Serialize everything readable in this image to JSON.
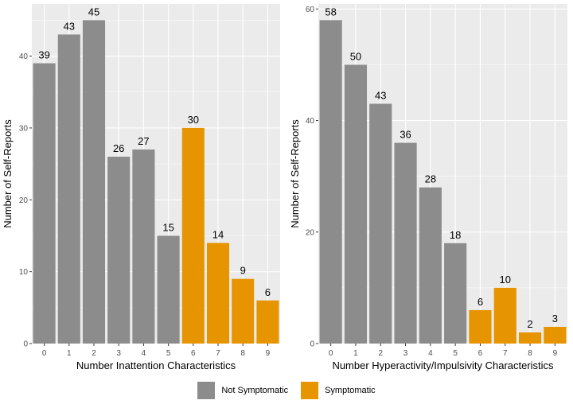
{
  "chart_data": [
    {
      "type": "bar",
      "xlabel": "Number Inattention Characteristics",
      "ylabel": "Number of Self-Reports",
      "categories": [
        "0",
        "1",
        "2",
        "3",
        "4",
        "5",
        "6",
        "7",
        "8",
        "9"
      ],
      "values": [
        39,
        43,
        45,
        26,
        27,
        15,
        30,
        14,
        9,
        6
      ],
      "groups": [
        "Not Symptomatic",
        "Not Symptomatic",
        "Not Symptomatic",
        "Not Symptomatic",
        "Not Symptomatic",
        "Not Symptomatic",
        "Symptomatic",
        "Symptomatic",
        "Symptomatic",
        "Symptomatic"
      ],
      "yticks": [
        0,
        10,
        20,
        30,
        40
      ],
      "ylim": [
        0,
        47.25
      ]
    },
    {
      "type": "bar",
      "xlabel": "Number Hyperactivity/Impulsivity Characteristics",
      "ylabel": "Number of Self-Reports",
      "categories": [
        "0",
        "1",
        "2",
        "3",
        "4",
        "5",
        "6",
        "7",
        "8",
        "9"
      ],
      "values": [
        58,
        50,
        43,
        36,
        28,
        18,
        6,
        10,
        2,
        3
      ],
      "groups": [
        "Not Symptomatic",
        "Not Symptomatic",
        "Not Symptomatic",
        "Not Symptomatic",
        "Not Symptomatic",
        "Not Symptomatic",
        "Symptomatic",
        "Symptomatic",
        "Symptomatic",
        "Symptomatic"
      ],
      "yticks": [
        0,
        20,
        40,
        60
      ],
      "ylim": [
        0,
        60.9
      ]
    }
  ],
  "legend": [
    {
      "label": "Not Symptomatic",
      "color": "#8c8c8c"
    },
    {
      "label": "Symptomatic",
      "color": "#e69500"
    }
  ],
  "colors": {
    "panel_bg": "#ebebeb",
    "grid": "#ffffff",
    "Not Symptomatic": "#8c8c8c",
    "Symptomatic": "#e69500"
  }
}
